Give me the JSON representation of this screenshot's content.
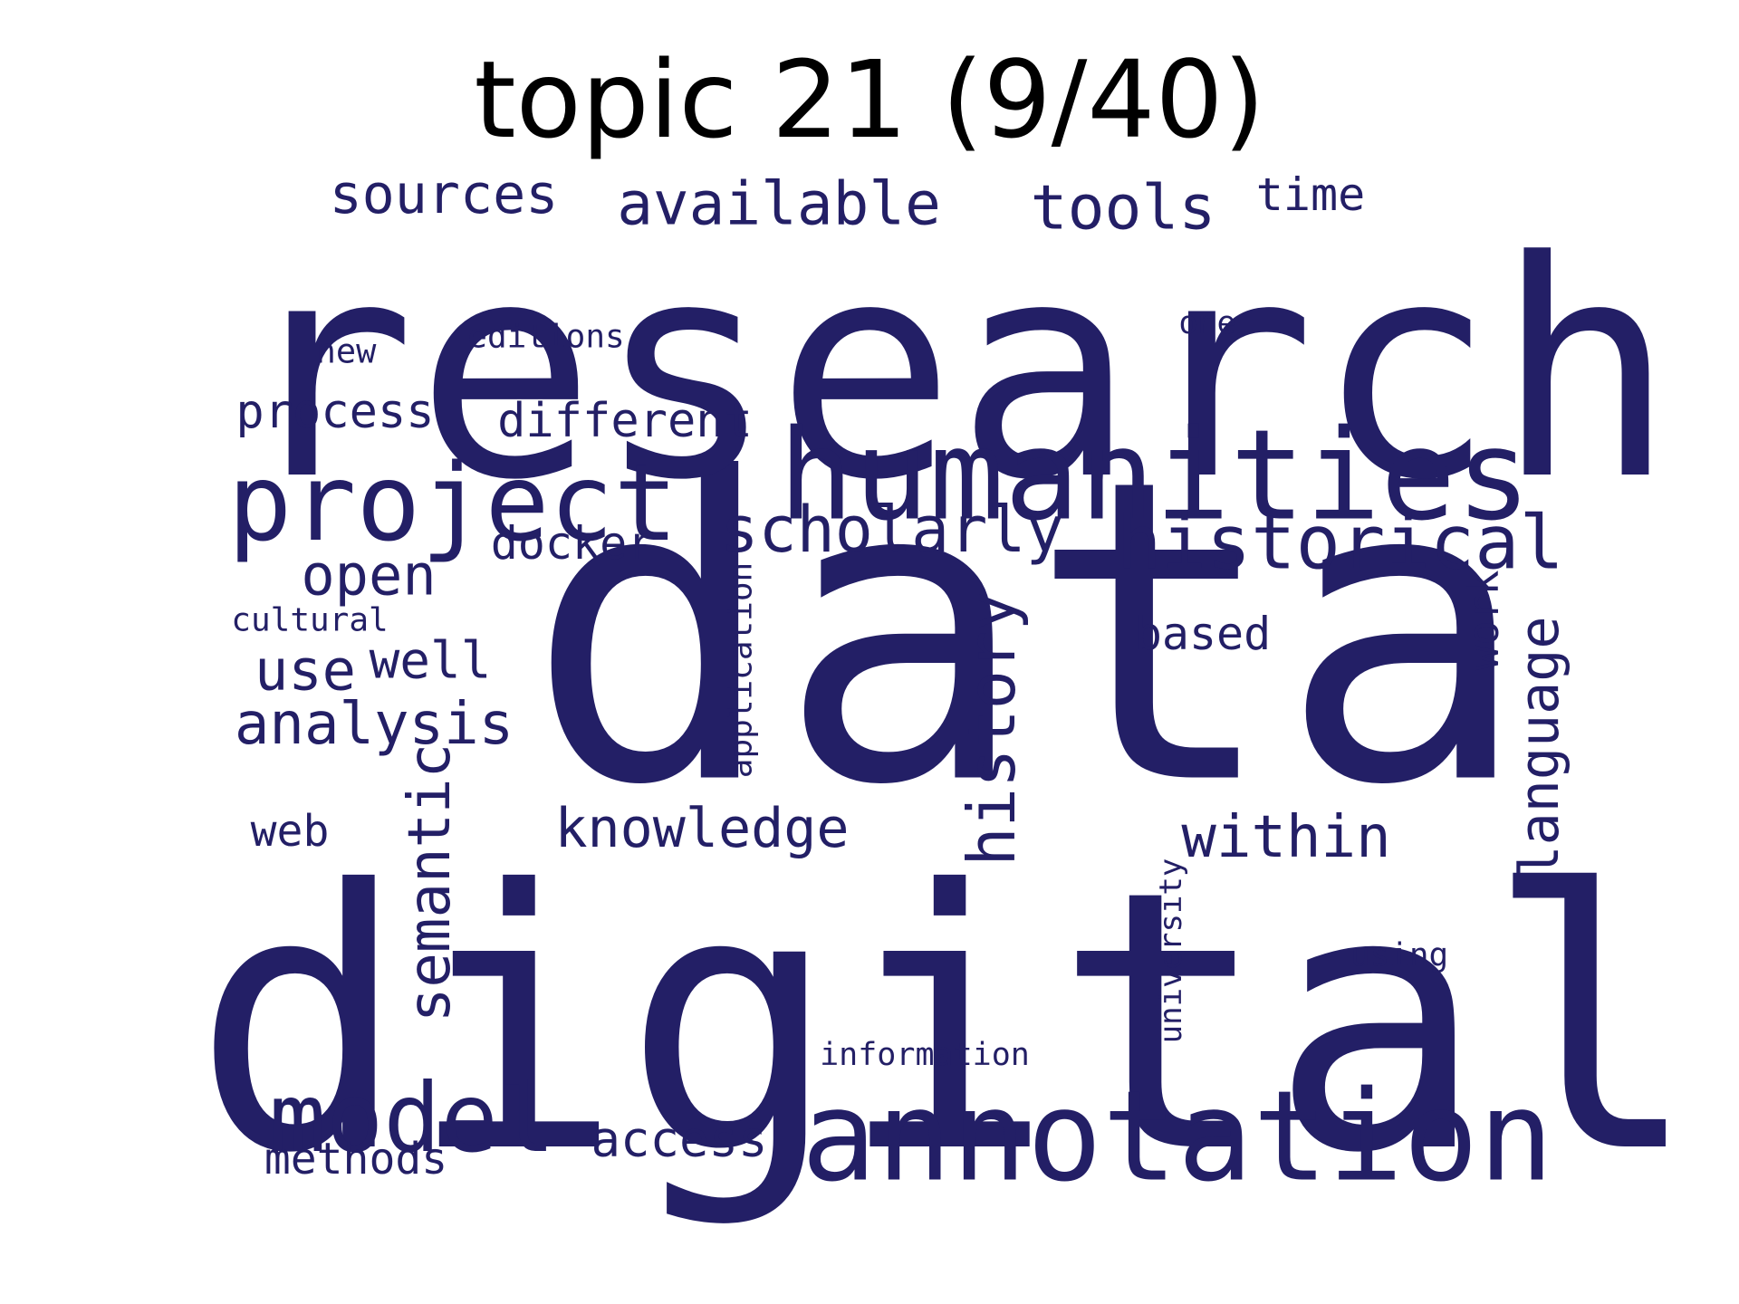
{
  "title": "topic 21 (9/40)",
  "word_color": "#231f66",
  "words": [
    {
      "text": "data",
      "weight": 1.0,
      "orientation": "horizontal"
    },
    {
      "text": "research",
      "weight": 0.78,
      "orientation": "horizontal"
    },
    {
      "text": "digital",
      "weight": 0.9,
      "orientation": "horizontal"
    },
    {
      "text": "humanities",
      "weight": 0.45,
      "orientation": "horizontal"
    },
    {
      "text": "annotation",
      "weight": 0.45,
      "orientation": "horizontal"
    },
    {
      "text": "project",
      "weight": 0.4,
      "orientation": "horizontal"
    },
    {
      "text": "model",
      "weight": 0.37,
      "orientation": "horizontal"
    },
    {
      "text": "historical",
      "weight": 0.3,
      "orientation": "horizontal"
    },
    {
      "text": "scholarly",
      "weight": 0.23,
      "orientation": "horizontal"
    },
    {
      "text": "history",
      "weight": 0.25,
      "orientation": "vertical"
    },
    {
      "text": "semantic",
      "weight": 0.23,
      "orientation": "vertical"
    },
    {
      "text": "tools",
      "weight": 0.2,
      "orientation": "horizontal"
    },
    {
      "text": "available",
      "weight": 0.2,
      "orientation": "horizontal"
    },
    {
      "text": "sources",
      "weight": 0.2,
      "orientation": "horizontal"
    },
    {
      "text": "within",
      "weight": 0.2,
      "orientation": "horizontal"
    },
    {
      "text": "analysis",
      "weight": 0.2,
      "orientation": "horizontal"
    },
    {
      "text": "language",
      "weight": 0.2,
      "orientation": "vertical"
    },
    {
      "text": "open",
      "weight": 0.19,
      "orientation": "horizontal"
    },
    {
      "text": "use",
      "weight": 0.19,
      "orientation": "horizontal"
    },
    {
      "text": "knowledge",
      "weight": 0.18,
      "orientation": "horizontal"
    },
    {
      "text": "different",
      "weight": 0.17,
      "orientation": "horizontal"
    },
    {
      "text": "process",
      "weight": 0.17,
      "orientation": "horizontal"
    },
    {
      "text": "well",
      "weight": 0.17,
      "orientation": "horizontal"
    },
    {
      "text": "access",
      "weight": 0.17,
      "orientation": "horizontal"
    },
    {
      "text": "docker",
      "weight": 0.16,
      "orientation": "horizontal"
    },
    {
      "text": "based",
      "weight": 0.16,
      "orientation": "horizontal"
    },
    {
      "text": "time",
      "weight": 0.16,
      "orientation": "horizontal"
    },
    {
      "text": "work",
      "weight": 0.16,
      "orientation": "vertical"
    },
    {
      "text": "methods",
      "weight": 0.15,
      "orientation": "horizontal"
    },
    {
      "text": "web",
      "weight": 0.15,
      "orientation": "horizontal"
    },
    {
      "text": "application",
      "weight": 0.12,
      "orientation": "vertical"
    },
    {
      "text": "university",
      "weight": 0.12,
      "orientation": "vertical"
    },
    {
      "text": "cultural",
      "weight": 0.12,
      "orientation": "horizontal"
    },
    {
      "text": "editions",
      "weight": 0.12,
      "orientation": "horizontal"
    },
    {
      "text": "information",
      "weight": 0.12,
      "orientation": "horizontal"
    },
    {
      "text": "using",
      "weight": 0.12,
      "orientation": "horizontal"
    },
    {
      "text": "one",
      "weight": 0.12,
      "orientation": "horizontal"
    },
    {
      "text": "new",
      "weight": 0.12,
      "orientation": "horizontal"
    }
  ]
}
